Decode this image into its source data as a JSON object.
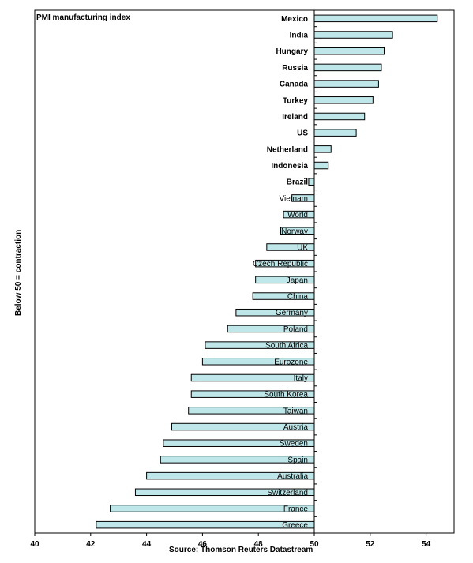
{
  "chart_data": {
    "type": "bar",
    "orientation": "horizontal",
    "title": "PMI manufacturing index",
    "ylabel": "Below 50 = contraction",
    "source": "Source: Thomson Reuters Datastream",
    "xlim": [
      40,
      55
    ],
    "xticks": [
      "40",
      "42",
      "44",
      "46",
      "48",
      "50",
      "52",
      "54"
    ],
    "baseline": 50,
    "bar_color": "#bfe6e8",
    "categories": [
      "Mexico",
      "India",
      "Hungary",
      "Russia",
      "Canada",
      "Turkey",
      "Ireland",
      "US",
      "Netherland",
      "Indonesia",
      "Brazil",
      "Vietnam",
      "World",
      "Norway",
      "UK",
      "Czech Republic",
      "Japan",
      "China",
      "Germany",
      "Poland",
      "South Africa",
      "Eurozone",
      "Italy",
      "South Korea",
      "Taiwan",
      "Austria",
      "Sweden",
      "Spain",
      "Australia",
      "Switzerland",
      "France",
      "Greece"
    ],
    "values": [
      54.4,
      52.8,
      52.5,
      52.4,
      52.3,
      52.1,
      51.8,
      51.5,
      50.6,
      50.5,
      49.8,
      49.2,
      48.9,
      48.8,
      48.3,
      47.9,
      47.9,
      47.8,
      47.2,
      46.9,
      46.1,
      46.0,
      45.6,
      45.6,
      45.5,
      44.9,
      44.6,
      44.5,
      44.0,
      43.6,
      42.7,
      42.2
    ]
  }
}
